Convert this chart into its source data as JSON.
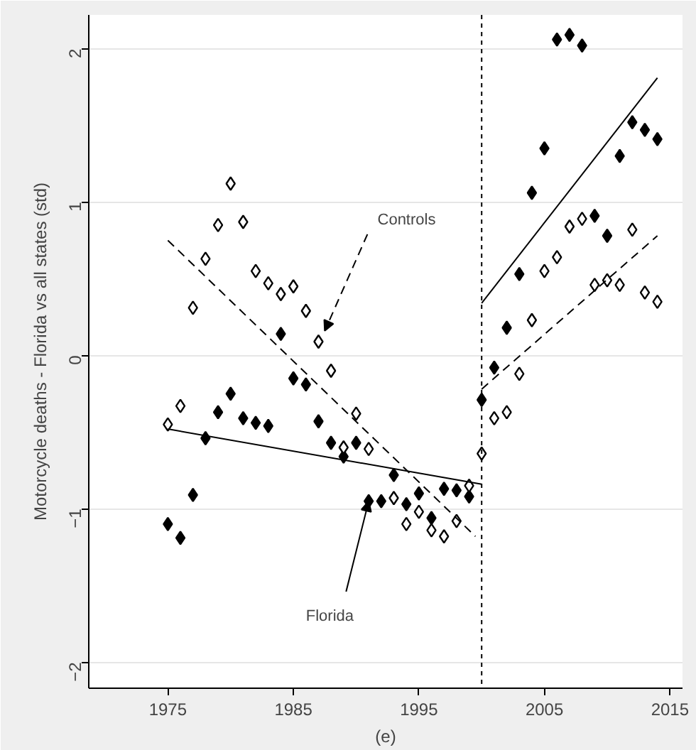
{
  "chart_data": {
    "type": "scatter",
    "xlabel": "(e)",
    "ylabel": "Motorcycle deaths - Florida vs all states (std)",
    "xlim": [
      1968.7,
      2016
    ],
    "ylim": [
      -2.17,
      2.22
    ],
    "xticks": [
      1975,
      1985,
      1995,
      2005,
      2015
    ],
    "yticks": [
      -2,
      -1,
      0,
      1,
      2
    ],
    "grid": "y",
    "series": [
      {
        "marker": "diamond",
        "color": "#000000",
        "x": [
          1975,
          1976,
          1977,
          1978,
          1979,
          1980,
          1981,
          1982,
          1983,
          1984,
          1985,
          1986,
          1987,
          1988,
          1989,
          1990,
          1991,
          1992,
          1993,
          1994,
          1995,
          1996,
          1997,
          1998,
          1999,
          2000,
          2001,
          2002,
          2003,
          2004,
          2005,
          2006,
          2007,
          2008,
          2009,
          2010,
          2011,
          2012,
          2013,
          2014
        ],
        "values": [
          -1.1,
          -1.19,
          -0.91,
          -0.54,
          -0.37,
          -0.25,
          -0.41,
          -0.44,
          -0.46,
          0.14,
          -0.15,
          -0.19,
          -0.43,
          -0.57,
          -0.66,
          -0.57,
          -0.95,
          -0.95,
          -0.78,
          -0.97,
          -0.9,
          -1.06,
          -0.87,
          -0.88,
          -0.92,
          -0.29,
          -0.08,
          0.18,
          0.53,
          1.06,
          1.35,
          2.06,
          2.09,
          2.02,
          0.91,
          0.78,
          1.3,
          1.52,
          1.47,
          1.41
        ]
      },
      {
        "marker": "diamond",
        "color": "#ffffff",
        "x": [
          1975,
          1976,
          1977,
          1978,
          1979,
          1980,
          1981,
          1982,
          1983,
          1984,
          1985,
          1986,
          1987,
          1988,
          1989,
          1990,
          1991,
          1992,
          1993,
          1994,
          1995,
          1996,
          1997,
          1998,
          1999,
          2000,
          2001,
          2002,
          2003,
          2004,
          2005,
          2006,
          2007,
          2008,
          2009,
          2010,
          2011,
          2012,
          2013,
          2014
        ],
        "values": [
          -0.45,
          -0.33,
          0.31,
          0.63,
          0.85,
          1.12,
          0.87,
          0.55,
          0.47,
          0.4,
          0.45,
          0.29,
          0.09,
          -0.1,
          -0.6,
          -0.38,
          -0.61,
          null,
          -0.93,
          -1.1,
          -1.02,
          -1.14,
          -1.18,
          -1.08,
          -0.85,
          -0.64,
          -0.41,
          -0.37,
          -0.12,
          0.23,
          0.55,
          0.64,
          0.84,
          0.89,
          0.46,
          0.49,
          0.46,
          0.82,
          0.41,
          0.35
        ]
      },
      {
        "type": "line",
        "color": "#000000",
        "line_style": "solid",
        "x": [
          1975,
          2000
        ],
        "values": [
          -0.48,
          -0.84
        ]
      },
      {
        "type": "line",
        "color": "#000000",
        "line_style": "solid",
        "x": [
          2000,
          2014
        ],
        "values": [
          0.34,
          1.81
        ]
      },
      {
        "type": "line",
        "color": "#000000",
        "line_style": "dashed",
        "x": [
          1975,
          1999.5
        ],
        "values": [
          0.75,
          -1.18
        ]
      },
      {
        "type": "line",
        "color": "#000000",
        "line_style": "dashed",
        "x": [
          2000,
          2014
        ],
        "values": [
          -0.22,
          0.78
        ]
      }
    ],
    "ref_lines": [
      {
        "axis": "x",
        "value": 2000,
        "label": null,
        "color": "#000000",
        "line_style": "dotted"
      }
    ],
    "annotations": [
      {
        "text": "Controls",
        "x": 1987.5,
        "y": 0.16
      },
      {
        "text": "Florida",
        "x": 1991,
        "y": -0.95
      }
    ]
  }
}
